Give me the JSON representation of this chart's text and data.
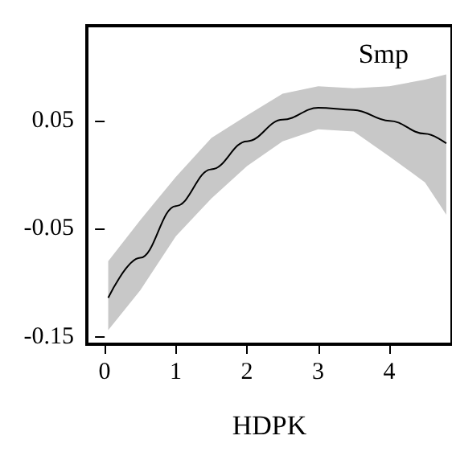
{
  "chart_data": {
    "type": "line",
    "title": "Smp",
    "xlabel": "HDPK",
    "x": [
      0.05,
      0.5,
      1,
      1.5,
      2,
      2.5,
      3,
      3.5,
      4,
      4.5,
      4.8
    ],
    "series": [
      {
        "color": "#000000",
        "values": [
          -0.114,
          -0.077,
          -0.029,
          0.005,
          0.031,
          0.051,
          0.062,
          0.06,
          0.05,
          0.038,
          0.029
        ],
        "lower": [
          -0.144,
          -0.107,
          -0.057,
          -0.022,
          0.008,
          0.031,
          0.042,
          0.04,
          0.017,
          -0.007,
          -0.037
        ],
        "upper": [
          -0.08,
          -0.042,
          -0.002,
          0.034,
          0.055,
          0.075,
          0.082,
          0.08,
          0.082,
          0.088,
          0.093
        ]
      }
    ],
    "xlim": [
      -0.25,
      4.88
    ],
    "ylim": [
      -0.157,
      0.138
    ],
    "xticks": [
      0,
      1,
      2,
      3,
      4
    ],
    "yticks": [
      -0.15,
      -0.05,
      0.05
    ],
    "grid": false,
    "marker": "none",
    "line_style": "solid"
  }
}
